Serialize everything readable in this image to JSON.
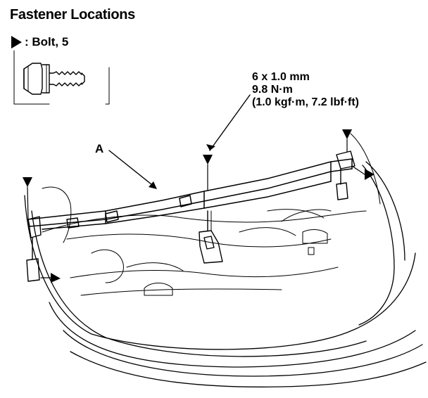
{
  "title": "Fastener Locations",
  "legend": {
    "symbol_icon": "solid-triangle-arrow-icon",
    "label": ": Bolt, 5"
  },
  "torque_spec": {
    "line1": "6 x 1.0 mm",
    "line2": "9.8 N·m",
    "line3": "(1.0 kgf·m, 7.2 lbf·ft)"
  },
  "callout": {
    "label": "A"
  }
}
